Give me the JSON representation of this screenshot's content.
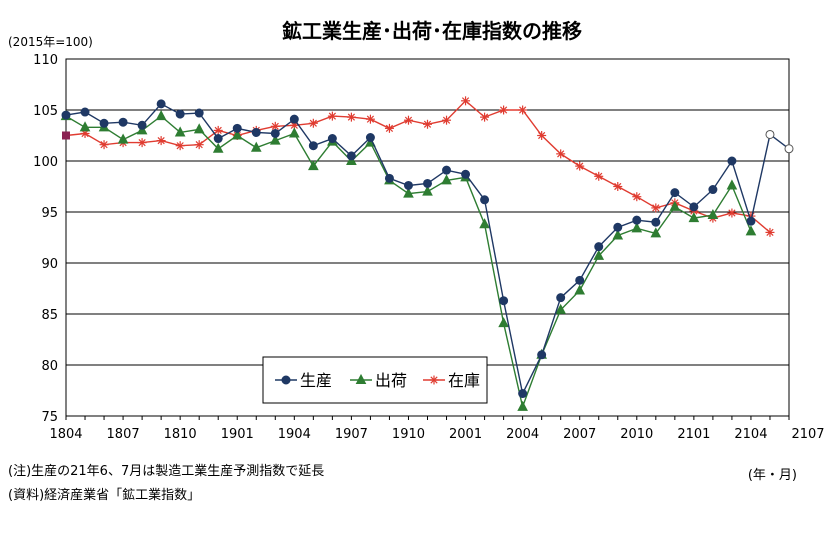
{
  "chart_data": {
    "type": "line",
    "title": "鉱工業生産･出荷･在庫指数の推移",
    "ylabel": "(2015年=100)",
    "xlabel": "(年・月)",
    "ylim": [
      75,
      110
    ],
    "yticks": [
      75,
      80,
      85,
      90,
      95,
      100,
      105,
      110
    ],
    "xticks": [
      "1804",
      "1807",
      "1810",
      "1901",
      "1904",
      "1907",
      "1910",
      "2001",
      "2004",
      "2007",
      "2010",
      "2101",
      "2104",
      "2107"
    ],
    "grid": "horizontal",
    "legend_position": "bottom-center",
    "series": [
      {
        "name": "生産",
        "color": "#1f3864",
        "marker": "circle",
        "values": [
          104.5,
          104.8,
          103.7,
          103.8,
          103.5,
          105.6,
          104.6,
          104.7,
          102.2,
          103.2,
          102.8,
          102.7,
          104.1,
          101.5,
          102.2,
          100.5,
          102.3,
          98.3,
          97.6,
          97.8,
          99.1,
          98.7,
          96.2,
          86.3,
          77.2,
          81.0,
          86.6,
          88.3,
          91.6,
          93.5,
          94.2,
          94.0,
          96.9,
          95.5,
          97.2,
          100.0,
          94.1,
          102.6,
          101.2
        ],
        "forecast_from_index": 37
      },
      {
        "name": "出荷",
        "color": "#2e7d32",
        "marker": "triangle",
        "values": [
          104.4,
          103.3,
          103.3,
          102.1,
          103.0,
          104.4,
          102.8,
          103.1,
          101.2,
          102.5,
          101.3,
          102.0,
          102.7,
          99.5,
          101.9,
          100.0,
          101.8,
          98.1,
          96.8,
          97.0,
          98.1,
          98.4,
          93.8,
          84.1,
          75.9,
          81.0,
          85.4,
          87.3,
          90.7,
          92.7,
          93.4,
          92.9,
          95.5,
          94.4,
          94.7,
          97.6,
          93.1,
          null,
          null
        ]
      },
      {
        "name": "在庫",
        "color": "#e03c31",
        "marker": "asterisk",
        "values": [
          102.5,
          102.7,
          101.6,
          101.8,
          101.8,
          102.0,
          101.5,
          101.6,
          103.0,
          102.5,
          103.0,
          103.4,
          103.5,
          103.7,
          104.4,
          104.3,
          104.1,
          103.2,
          104.0,
          103.6,
          104.0,
          105.9,
          104.3,
          105.0,
          105.0,
          102.5,
          100.7,
          99.5,
          98.5,
          97.5,
          96.5,
          95.4,
          95.9,
          95.1,
          94.4,
          94.9,
          94.6,
          93.0,
          null
        ]
      }
    ],
    "first_point_color": "#8b2252"
  },
  "notes": [
    "(注)生産の21年6、7月は製造工業生産予測指数で延長",
    "(資料)経済産業省「鉱工業指数」"
  ]
}
